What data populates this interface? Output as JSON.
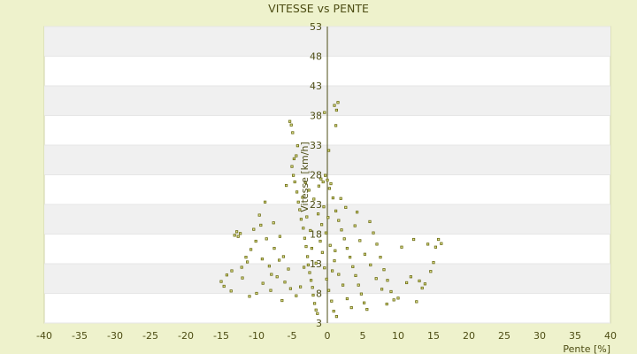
{
  "chart_data": {
    "type": "scatter",
    "title": "VITESSE vs PENTE",
    "xlabel": "Pente [%]",
    "ylabel": "Vitesse [km/h]",
    "xlim": [
      -40,
      40
    ],
    "ylim": [
      3,
      53
    ],
    "xticks": [
      -40,
      -35,
      -30,
      -25,
      -20,
      -15,
      -10,
      -5,
      0,
      5,
      10,
      15,
      20,
      25,
      30,
      35,
      40
    ],
    "yticks": [
      3,
      8,
      13,
      18,
      23,
      28,
      33,
      38,
      43,
      48,
      53
    ],
    "grid": true,
    "legend": "none",
    "colors": {
      "background": "#eef2cc",
      "plot_background": "#ffffff",
      "band": "#f0f0f0",
      "marker": "#6b6b14",
      "marker_fill": "#dfe38a",
      "axis": "#4d4d14",
      "text": "#4d4d14"
    },
    "points": [
      [
        -15.0,
        10.0
      ],
      [
        -14.6,
        9.2
      ],
      [
        -14.2,
        11.1
      ],
      [
        -13.6,
        8.4
      ],
      [
        -13.5,
        11.8
      ],
      [
        -13.1,
        17.8
      ],
      [
        -12.8,
        18.4
      ],
      [
        -12.6,
        17.6
      ],
      [
        -12.3,
        18.1
      ],
      [
        -12.0,
        10.6
      ],
      [
        -12.1,
        12.4
      ],
      [
        -11.5,
        14.1
      ],
      [
        -11.3,
        13.3
      ],
      [
        -11.0,
        7.5
      ],
      [
        -10.8,
        15.4
      ],
      [
        -10.4,
        18.8
      ],
      [
        -10.1,
        16.8
      ],
      [
        -10.0,
        8.0
      ],
      [
        -9.6,
        21.2
      ],
      [
        -9.4,
        19.5
      ],
      [
        -9.2,
        13.8
      ],
      [
        -8.8,
        23.4
      ],
      [
        -8.6,
        17.2
      ],
      [
        -8.2,
        12.6
      ],
      [
        -8.0,
        8.5
      ],
      [
        -7.6,
        19.9
      ],
      [
        -7.5,
        15.6
      ],
      [
        -7.1,
        10.8
      ],
      [
        -6.7,
        17.6
      ],
      [
        -6.4,
        6.8
      ],
      [
        -6.2,
        14.2
      ],
      [
        -6.0,
        9.9
      ],
      [
        -5.8,
        26.2
      ],
      [
        -5.5,
        12.1
      ],
      [
        -5.3,
        37.0
      ],
      [
        -5.1,
        36.4
      ],
      [
        -4.9,
        35.1
      ],
      [
        -4.7,
        30.7
      ],
      [
        -5.0,
        29.4
      ],
      [
        -4.8,
        27.9
      ],
      [
        -4.6,
        26.8
      ],
      [
        -4.4,
        31.2
      ],
      [
        -4.2,
        32.9
      ],
      [
        -4.3,
        25.1
      ],
      [
        -4.1,
        23.4
      ],
      [
        -3.9,
        22.1
      ],
      [
        -3.7,
        20.5
      ],
      [
        -3.5,
        24.2
      ],
      [
        -3.4,
        19.0
      ],
      [
        -3.2,
        17.3
      ],
      [
        -3.0,
        15.9
      ],
      [
        -2.8,
        14.2
      ],
      [
        -2.7,
        12.8
      ],
      [
        -2.5,
        11.5
      ],
      [
        -2.3,
        10.2
      ],
      [
        -2.1,
        9.0
      ],
      [
        -2.0,
        7.7
      ],
      [
        -1.8,
        6.3
      ],
      [
        -1.6,
        5.2
      ],
      [
        -1.4,
        4.6
      ],
      [
        -0.4,
        38.5
      ],
      [
        0.2,
        32.1
      ],
      [
        1.0,
        39.7
      ],
      [
        1.5,
        40.2
      ],
      [
        1.2,
        36.3
      ],
      [
        1.3,
        38.9
      ],
      [
        0.5,
        26.5
      ],
      [
        0.8,
        24.1
      ],
      [
        1.2,
        21.9
      ],
      [
        1.6,
        20.3
      ],
      [
        2.0,
        18.7
      ],
      [
        2.4,
        17.2
      ],
      [
        2.8,
        15.6
      ],
      [
        3.2,
        14.1
      ],
      [
        3.6,
        12.5
      ],
      [
        4.0,
        11.0
      ],
      [
        4.4,
        9.4
      ],
      [
        4.8,
        7.9
      ],
      [
        5.2,
        6.4
      ],
      [
        5.6,
        5.3
      ],
      [
        6.0,
        20.1
      ],
      [
        6.5,
        18.2
      ],
      [
        7.0,
        16.3
      ],
      [
        7.5,
        14.1
      ],
      [
        8.0,
        12.0
      ],
      [
        8.5,
        10.2
      ],
      [
        9.0,
        8.3
      ],
      [
        9.4,
        6.9
      ],
      [
        10.0,
        7.2
      ],
      [
        10.5,
        15.8
      ],
      [
        11.2,
        9.8
      ],
      [
        11.8,
        10.8
      ],
      [
        12.2,
        17.1
      ],
      [
        12.6,
        6.6
      ],
      [
        13.0,
        10.1
      ],
      [
        13.4,
        8.9
      ],
      [
        13.8,
        9.6
      ],
      [
        14.2,
        16.3
      ],
      [
        14.6,
        11.7
      ],
      [
        15.0,
        13.2
      ],
      [
        15.3,
        15.8
      ],
      [
        15.7,
        17.1
      ],
      [
        16.1,
        16.4
      ],
      [
        -1.2,
        26.1
      ],
      [
        -0.9,
        27.3
      ],
      [
        -0.6,
        26.8
      ],
      [
        -0.3,
        27.9
      ],
      [
        0.0,
        27.1
      ],
      [
        0.3,
        25.7
      ],
      [
        -1.0,
        16.8
      ],
      [
        -0.7,
        14.9
      ],
      [
        -0.4,
        12.3
      ],
      [
        -0.1,
        10.4
      ],
      [
        0.2,
        8.5
      ],
      [
        0.6,
        6.7
      ],
      [
        0.9,
        5.0
      ],
      [
        1.3,
        4.1
      ],
      [
        -1.3,
        21.4
      ],
      [
        -0.8,
        19.6
      ],
      [
        -0.2,
        18.2
      ],
      [
        0.4,
        16.1
      ],
      [
        1.0,
        13.5
      ],
      [
        1.6,
        11.2
      ],
      [
        2.2,
        9.4
      ],
      [
        2.8,
        7.1
      ],
      [
        3.4,
        5.6
      ],
      [
        -2.4,
        18.6
      ],
      [
        -2.9,
        20.9
      ],
      [
        -3.3,
        12.4
      ],
      [
        -3.8,
        9.1
      ],
      [
        -4.4,
        7.6
      ],
      [
        -5.2,
        8.8
      ],
      [
        -6.8,
        13.6
      ],
      [
        -7.9,
        11.2
      ],
      [
        -9.1,
        9.7
      ],
      [
        3.9,
        19.4
      ],
      [
        4.6,
        16.9
      ],
      [
        5.3,
        14.6
      ],
      [
        6.1,
        12.8
      ],
      [
        6.9,
        10.5
      ],
      [
        7.7,
        8.7
      ],
      [
        8.4,
        6.2
      ],
      [
        4.2,
        21.7
      ],
      [
        2.6,
        22.5
      ],
      [
        1.9,
        24.0
      ],
      [
        1.1,
        15.2
      ],
      [
        0.7,
        11.8
      ],
      [
        -1.6,
        13.1
      ],
      [
        -2.2,
        15.6
      ],
      [
        -0.5,
        22.6
      ],
      [
        0.1,
        20.8
      ],
      [
        -1.9,
        23.9
      ],
      [
        -2.6,
        25.4
      ],
      [
        -3.1,
        26.7
      ]
    ]
  }
}
